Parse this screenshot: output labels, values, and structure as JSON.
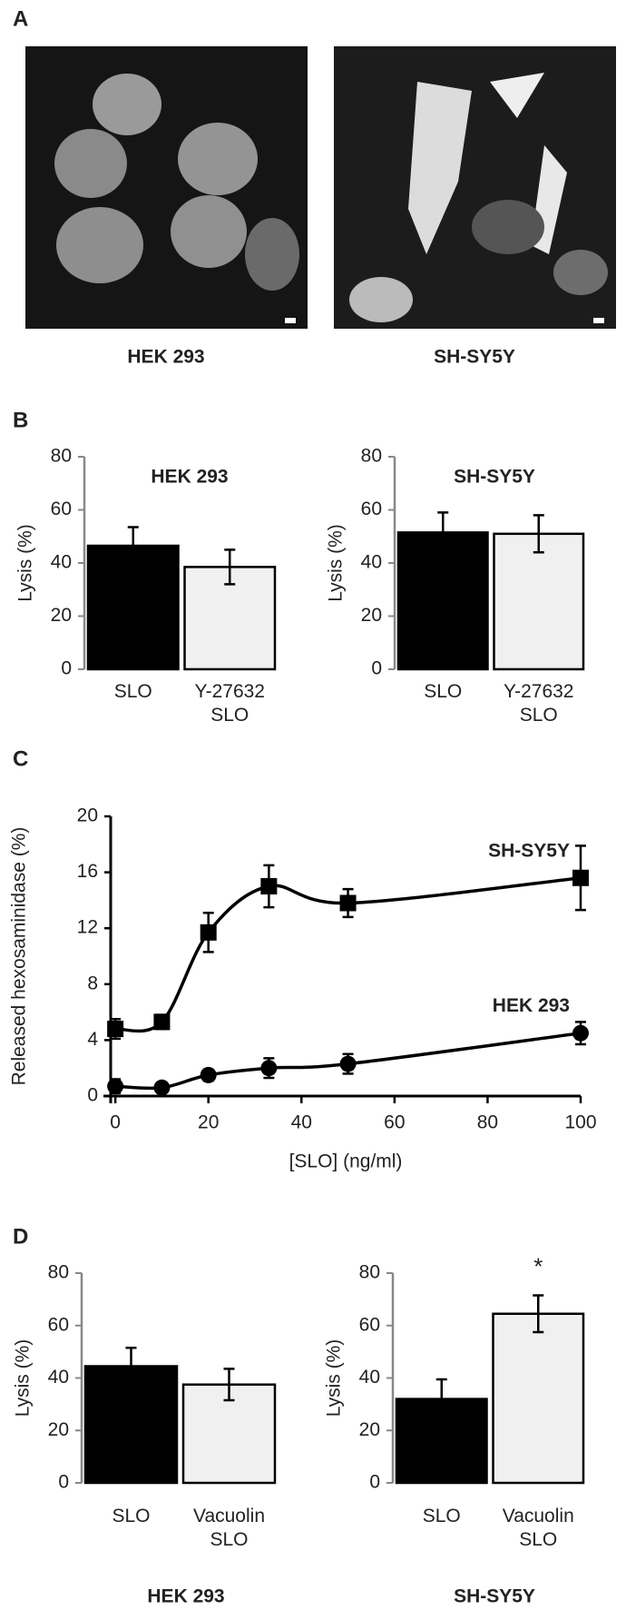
{
  "panels": [
    "A",
    "B",
    "C",
    "D"
  ],
  "images": [
    {
      "caption": "HEK 293"
    },
    {
      "caption": "SH-SY5Y"
    }
  ],
  "chart_data": [
    {
      "type": "bar",
      "title": "HEK 293",
      "y_label": "Lysis (%)",
      "categories": [
        "SLO",
        "Y-27632\nSLO"
      ],
      "values": [
        46.5,
        38.5
      ],
      "errors": [
        7,
        6.5
      ],
      "colors": [
        "#000000",
        "#f0f0f0"
      ],
      "ylim": [
        0,
        80
      ],
      "yticks": [
        0,
        20,
        40,
        60,
        80
      ]
    },
    {
      "type": "bar",
      "title": "SH-SY5Y",
      "y_label": "Lysis (%)",
      "categories": [
        "SLO",
        "Y-27632\nSLO"
      ],
      "values": [
        51.5,
        51
      ],
      "errors": [
        7.5,
        7
      ],
      "colors": [
        "#000000",
        "#f0f0f0"
      ],
      "ylim": [
        0,
        80
      ],
      "yticks": [
        0,
        20,
        40,
        60,
        80
      ]
    },
    {
      "type": "line",
      "x_label": "[SLO] (ng/ml)",
      "y_label": "Released hexosaminidase (%)",
      "xlim": [
        -1,
        100
      ],
      "xticks": [
        0,
        20,
        40,
        60,
        80,
        100
      ],
      "ylim": [
        0,
        20
      ],
      "yticks": [
        0,
        4,
        8,
        12,
        16,
        20
      ],
      "series": [
        {
          "name": "SH-SY5Y",
          "marker": "square",
          "color": "#000000",
          "x": [
            0,
            10,
            20,
            33,
            50,
            100
          ],
          "values": [
            4.8,
            5.3,
            11.7,
            15,
            13.8,
            15.6
          ],
          "errors": [
            0.7,
            0.5,
            1.4,
            1.5,
            1,
            2.3
          ]
        },
        {
          "name": "HEK 293",
          "marker": "circle",
          "color": "#000000",
          "x": [
            0,
            10,
            20,
            33,
            50,
            100
          ],
          "values": [
            0.7,
            0.6,
            1.5,
            2,
            2.3,
            4.5
          ],
          "errors": [
            0.5,
            0.3,
            0.4,
            0.7,
            0.7,
            0.8
          ]
        }
      ]
    },
    {
      "type": "bar",
      "title": "HEK 293",
      "y_label": "Lysis (%)",
      "categories": [
        "SLO",
        "Vacuolin\nSLO"
      ],
      "values": [
        44.5,
        37.5
      ],
      "errors": [
        7,
        6
      ],
      "colors": [
        "#000000",
        "#f0f0f0"
      ],
      "ylim": [
        0,
        80
      ],
      "yticks": [
        0,
        20,
        40,
        60,
        80
      ]
    },
    {
      "type": "bar",
      "title": "SH-SY5Y",
      "y_label": "Lysis (%)",
      "categories": [
        "SLO",
        "Vacuolin\nSLO"
      ],
      "values": [
        32,
        64.5
      ],
      "errors": [
        7.5,
        7
      ],
      "colors": [
        "#000000",
        "#f0f0f0"
      ],
      "ylim": [
        0,
        80
      ],
      "yticks": [
        0,
        20,
        40,
        60,
        80
      ],
      "annotation": "*"
    }
  ]
}
